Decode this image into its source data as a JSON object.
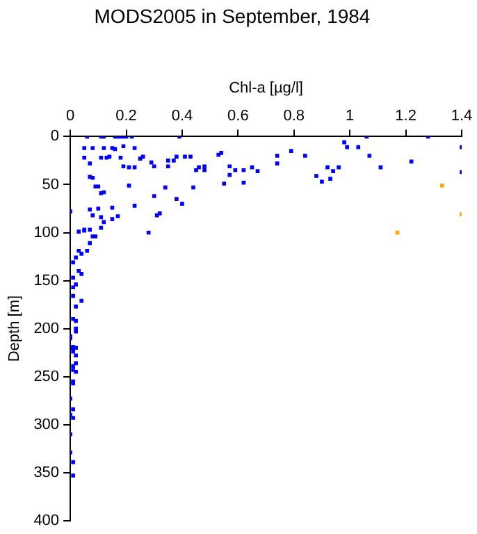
{
  "chart_data": {
    "type": "scatter",
    "title": "MODS2005 in September, 1984",
    "xlabel": "Chl-a [µg/l]",
    "ylabel": "Depth [m]",
    "xlim": [
      0,
      1.4
    ],
    "xticks": [
      0,
      0.2,
      0.4,
      0.6,
      0.8,
      1,
      1.2,
      1.4
    ],
    "ylim": [
      400,
      0
    ],
    "yticks": [
      0,
      50,
      100,
      150,
      200,
      250,
      300,
      350,
      400
    ],
    "grid": false,
    "legend": false,
    "marker": "square",
    "series": [
      {
        "color": "#0000ff",
        "x": [
          0.06,
          0.11,
          0.12,
          0.16,
          0.17,
          0.18,
          0.19,
          0.2,
          0.22,
          0.39,
          1.06,
          1.28,
          0.05,
          0.05,
          0.07,
          0.07,
          0.08,
          0.09,
          0.11,
          0.12,
          0.13,
          0.14,
          0.15,
          0.16,
          0.18,
          0.19,
          0.19,
          0.21,
          0.21,
          0.23,
          0.23,
          0.25,
          0.26,
          0.29,
          0.3,
          0.34,
          0.35,
          0.35,
          0.37,
          0.38,
          0.41,
          0.43,
          0.44,
          0.45,
          0.46,
          0.48,
          0.48,
          0.53,
          0.54,
          0.55,
          0.57,
          0.57,
          0.59,
          0.62,
          0.62,
          0.65,
          0.67,
          0.74,
          0.74,
          0.79,
          0.84,
          0.88,
          0.9,
          0.92,
          0.93,
          0.94,
          0.96,
          0.98,
          0.99,
          1.03,
          1.07,
          1.11,
          1.22,
          1.4,
          1.4,
          0,
          0.07,
          0.08,
          0.1,
          0.11,
          0.12,
          0.11,
          0.15,
          0.15,
          0.17,
          0.23,
          0.28,
          0.31,
          0.32,
          0.3,
          0.38,
          0.4,
          0.1,
          0.11,
          0.12,
          0.08,
          0.03,
          0.05,
          0.05,
          0.07,
          0.08,
          0.09,
          0.07,
          0.06,
          0.03,
          0.04,
          0.02,
          0.01,
          0.03,
          0.04,
          0.01,
          0.01,
          0.02,
          0.01,
          0.02,
          0.04,
          0.01,
          0.02,
          0.02,
          0,
          0.01,
          0.01,
          0.02,
          0,
          0.01,
          0.02,
          0.01,
          0.02,
          0.02,
          0.01,
          0.01,
          0.02,
          0.01,
          0.01,
          0,
          0.01,
          0,
          0.01,
          0,
          0,
          0.01,
          0.01
        ],
        "values": [
          0,
          0,
          0,
          0,
          0,
          0,
          0,
          0,
          0,
          0,
          0,
          0,
          12,
          22,
          28,
          42,
          12,
          52,
          22,
          12,
          22,
          21,
          12,
          13,
          22,
          31,
          10,
          32,
          51,
          12,
          32,
          23,
          21,
          27,
          31,
          53,
          25,
          31,
          25,
          21,
          21,
          21,
          53,
          35,
          32,
          31,
          35,
          19,
          17,
          49,
          40,
          31,
          35,
          35,
          48,
          32,
          36,
          20,
          28,
          15,
          20,
          41,
          47,
          32,
          44,
          36,
          32,
          6,
          11,
          11,
          20,
          32,
          26,
          11,
          37,
          78,
          76,
          82,
          75,
          84,
          89,
          95,
          74,
          86,
          83,
          72,
          100,
          82,
          80,
          62,
          65,
          70,
          52,
          59,
          58,
          43,
          99,
          97,
          98,
          97,
          104,
          104,
          111,
          119,
          119,
          122,
          126,
          131,
          140,
          143,
          147,
          157,
          154,
          166,
          177,
          171,
          190,
          192,
          203,
          210,
          220,
          221,
          200,
          208,
          219,
          220,
          224,
          228,
          236,
          239,
          243,
          245,
          255,
          257,
          273,
          284,
          290,
          293,
          310,
          329,
          339,
          353
        ]
      },
      {
        "color": "#ffa500",
        "x": [
          1.33,
          1.4,
          1.17
        ],
        "values": [
          51,
          81,
          100
        ]
      }
    ]
  }
}
